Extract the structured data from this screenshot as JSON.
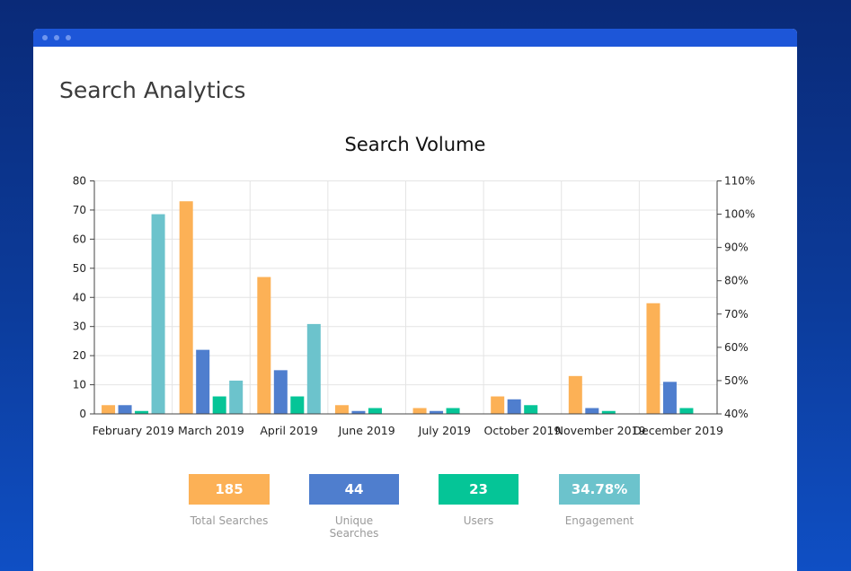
{
  "page": {
    "title": "Search Analytics"
  },
  "colors": {
    "total": "#fcb156",
    "unique": "#4f7ece",
    "users": "#05c597",
    "engagement": "#6cc3cc"
  },
  "chart_data": {
    "type": "bar",
    "title": "Search Volume",
    "categories": [
      "February 2019",
      "March 2019",
      "April 2019",
      "June 2019",
      "July 2019",
      "October 2019",
      "November 2019",
      "December 2019"
    ],
    "series": [
      {
        "key": "total",
        "axis": "left",
        "values": [
          3,
          73,
          47,
          3,
          2,
          6,
          13,
          38
        ]
      },
      {
        "key": "unique",
        "axis": "left",
        "values": [
          3,
          22,
          15,
          1,
          1,
          5,
          2,
          11
        ]
      },
      {
        "key": "users",
        "axis": "left",
        "values": [
          1,
          6,
          6,
          2,
          2,
          3,
          1,
          2
        ]
      },
      {
        "key": "engagement",
        "axis": "right",
        "values": [
          100,
          50,
          67,
          40,
          40,
          40,
          40,
          40
        ]
      }
    ],
    "y_left": {
      "min": 0,
      "max": 80,
      "step": 10,
      "ticks": [
        "0",
        "10",
        "20",
        "30",
        "40",
        "50",
        "60",
        "70",
        "80"
      ]
    },
    "y_right": {
      "min": 40,
      "max": 110,
      "step": 10,
      "ticks": [
        "40%",
        "50%",
        "60%",
        "70%",
        "80%",
        "90%",
        "100%",
        "110%"
      ]
    },
    "grid": true
  },
  "stats": [
    {
      "key": "total",
      "value": "185",
      "label": "Total Searches"
    },
    {
      "key": "unique",
      "value": "44",
      "label": "Unique Searches"
    },
    {
      "key": "users",
      "value": "23",
      "label": "Users"
    },
    {
      "key": "engagement",
      "value": "34.78%",
      "label": "Engagement"
    }
  ]
}
